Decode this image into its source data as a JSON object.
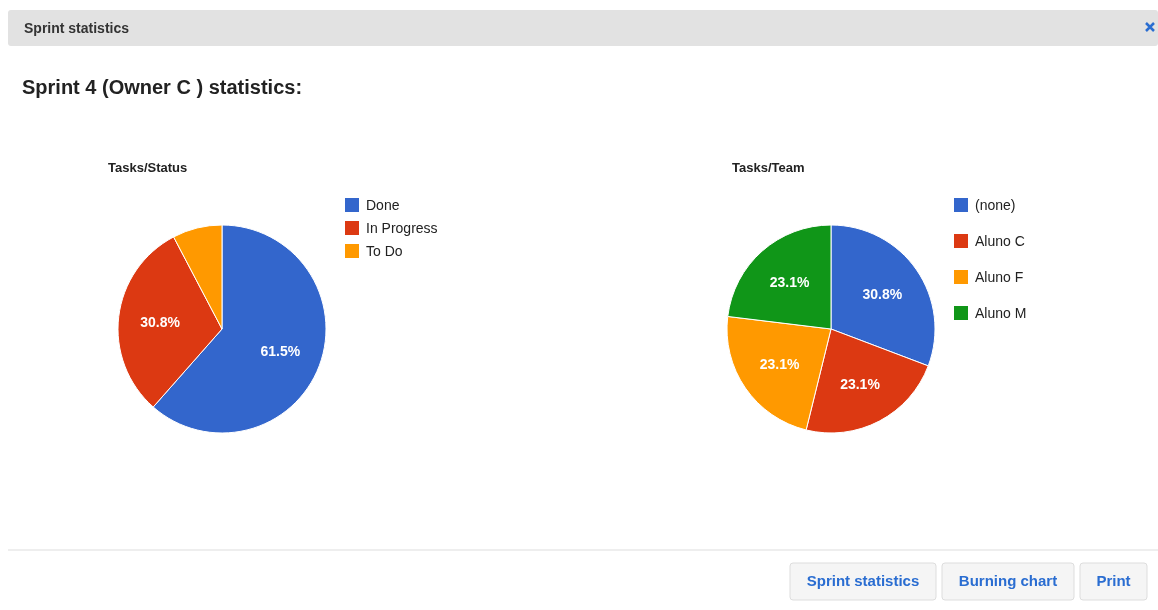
{
  "chart_data": [
    {
      "type": "other",
      "title": "Sprint statistics",
      "subtitle": "Sprint 4 (Owner C ) statistics:",
      "annotations": [
        "Sprint statistics",
        "Burning chart",
        "Print"
      ]
    },
    {
      "type": "pie",
      "title": "Tasks/Status",
      "categories": [
        "Done",
        "In Progress",
        "To Do"
      ],
      "values": [
        61.5,
        30.8,
        7.7
      ],
      "colors": [
        "#3366cc",
        "#dc3912",
        "#ff9900"
      ],
      "value_labels": [
        "61.5%",
        "30.8%",
        null
      ],
      "legend": "top right"
    },
    {
      "type": "pie",
      "title": "Tasks/Team",
      "categories": [
        "(none)",
        "Aluno C",
        "Aluno F",
        "Aluno M"
      ],
      "values": [
        30.8,
        23.1,
        23.1,
        23.1
      ],
      "colors": [
        "#3366cc",
        "#dc3912",
        "#ff9900",
        "#109618"
      ],
      "value_labels": [
        "30.8%",
        "23.1%",
        "23.1%",
        "23.1%"
      ],
      "legend": "top right"
    }
  ]
}
